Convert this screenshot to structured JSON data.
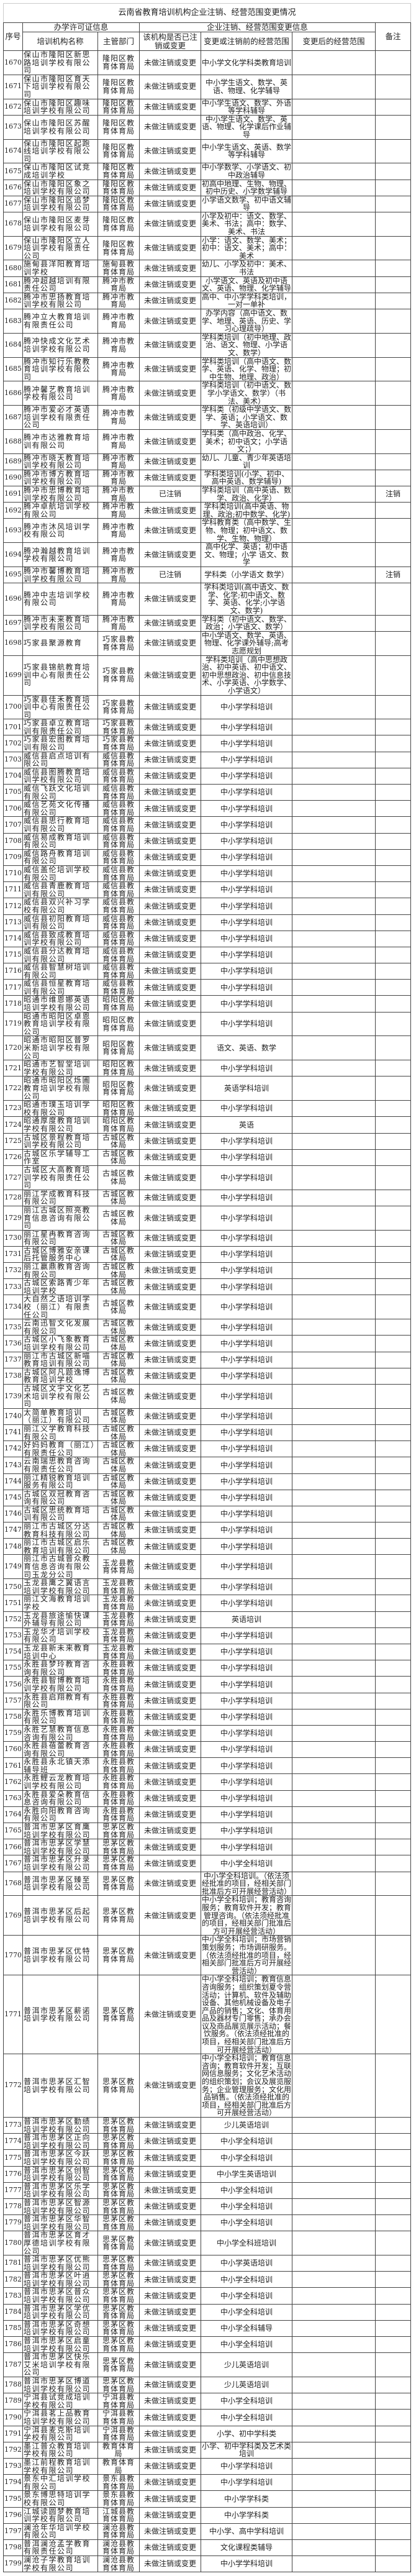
{
  "title": "云南省教育培训机构企业注销、经营范围变更情况",
  "headers": {
    "no": "序号",
    "group_license": "办学许可证信息",
    "group_change": "企业注销、经营范围变更信息",
    "name": "培训机构名称",
    "dept": "主管部门",
    "status": "该机构是否已注销或变更",
    "before": "变更或注销前的经营范围",
    "after": "变更后的经营范围",
    "note": "备注"
  },
  "rows": [
    [
      "1670",
      "保山市隆阳区新思路培训学校有限公司",
      "隆阳区教育体育局",
      "未做注销或变更",
      "中小学文化学科类教育培训",
      "",
      ""
    ],
    [
      "1671",
      "保山市隆阳区育天下培训学校有限公司",
      "隆阳区教育体育局",
      "未做注销或变更",
      "中小学生语文、数学、英语、物理、化学辅导",
      "",
      ""
    ],
    [
      "1672",
      "保山市隆阳区趣味培训学校有限公司",
      "隆阳区教育体育局",
      "未做注销或变更",
      "中小学生语文、数学、外语等学科辅导",
      "",
      ""
    ],
    [
      "1673",
      "保山市隆阳区苏醒培训学校有限公司",
      "隆阳区教育体育局",
      "未做注销或变更",
      "中小学生语文、数学、英语、物理、化学课后作业辅导",
      "",
      ""
    ],
    [
      "1674",
      "保山市隆阳区起跑线培训学校有限公司",
      "隆阳区教育体育局",
      "未做注销或变更",
      "中小学生语文、英语、数学等学科辅导",
      "",
      ""
    ],
    [
      "1675",
      "保山市隆阳区试竞成培训学校",
      "隆阳区教育体育局",
      "未做注销或变更",
      "中小学数学、小学语文、初中政治辅导",
      "",
      ""
    ],
    [
      "1676",
      "保山市隆阳区象之培训学校有限公司",
      "隆阳区教育体育局",
      "未做注销或变更",
      "初高中地理、生物、物理、初中历史、小学数学辅导",
      "",
      ""
    ],
    [
      "1677",
      "保山市隆阳区追梦培训学校有限公司",
      "隆阳区教育体育局",
      "未做注销或变更",
      "小学语文数学、初中语文辅导",
      "",
      ""
    ],
    [
      "1678",
      "保山市隆阳区麦芽培训学校有限公司",
      "隆阳区教育体育局",
      "未做注销或变更",
      "小学及初中：语文、数学、美术、书法；高中：数学、美术、书法",
      "",
      ""
    ],
    [
      "1679",
      "保山市隆阳区立人培训学校有限责任公司",
      "隆阳区教育体育局",
      "未做注销或变更",
      "小学：语文、数学、美术；初中：语文、美术；高中：美术",
      "",
      ""
    ],
    [
      "1680",
      "施甸县洋阳教育培训学校",
      "施甸县教育体育局",
      "未做注销或变更",
      "幼儿、小学及初中：美术、书法",
      "",
      ""
    ],
    [
      "1681",
      "腾冲超越培训有限责任公司",
      "腾冲市教育局",
      "未做注销或变更",
      "小学语文、英语及初中语文、英语、物理、化学辅导",
      "",
      ""
    ],
    [
      "1682",
      "腾冲市思扬教育培训学校有限公司",
      "腾冲市教育局",
      "未做注销或变更",
      "高中、中小学学科类培训，一对一单补",
      "",
      ""
    ],
    [
      "1683",
      "腾冲立大教育培训有限责任公司",
      "腾冲市教育局",
      "未做注销或变更",
      "办学内容（高中语文、数学、地理、英语、历史、学习心理疏导）",
      "",
      ""
    ],
    [
      "1684",
      "腾冲快成文化艺术培训学校有限公司",
      "腾冲市教育局",
      "未做注销或变更",
      "学科类培训（初中地理、政治、语文、物理、小学语文、数学）",
      "",
      ""
    ],
    [
      "1685",
      "腾冲市知行乐教教育培训学校有限公司",
      "腾冲市教育局",
      "未做注销或变更",
      "学科类培训（高中语文、数学、英语、化学、物理；初中生物、地理、政治）",
      "",
      ""
    ],
    [
      "1686",
      "腾冲馨艺教育培训学校有限公司",
      "腾冲市教育局",
      "未做注销或变更",
      "学科类培训（初中语文、数学小学语文、数学）（书法、美术）",
      "",
      ""
    ],
    [
      "1687",
      "腾冲市爱必才英语培训学校有限责任公司",
      "腾冲市教育局",
      "未做注销或变更",
      "学科类（初级中学语文、数学、英语；小学语文、数学、英语培训）",
      "",
      ""
    ],
    [
      "1688",
      "腾冲市达雅教育培训有限公司",
      "腾冲市教育局",
      "未做注销或变更",
      "学科类（高中政治、化学、美术；初中语文；小学语文；）",
      "",
      ""
    ],
    [
      "1689",
      "腾冲市晓天教育培训学校有限公司",
      "腾冲市教育局",
      "未做注销或变更",
      "幼儿、儿童、青少年英语培训",
      "",
      ""
    ],
    [
      "1690",
      "腾冲市博方教育培训学校有限公司",
      "腾冲市教育局",
      "未做注销或变更",
      "学科类培训(小学、初中、高中英语、数学辅导)",
      "",
      ""
    ],
    [
      "1691",
      "腾冲市思博教育培训学校有限公司",
      "腾冲市教育局",
      "已注销",
      "学科类培训（高中英语、数学、政治、化学）",
      "",
      "注销"
    ],
    [
      "1692",
      "腾冲卓航培训学校有限公司",
      "腾冲市教育局",
      "未做注销或变更",
      "学科类培训(高中英语、物理、政治;初中数学、化学)",
      "",
      ""
    ],
    [
      "1693",
      "腾冲市沐风培训学校有限公司",
      "腾冲市教育局",
      "未做注销或变更",
      "学科教育类（高中数学、生物、物理；初中语文、数学、生物、物理）",
      "",
      ""
    ],
    [
      "1694",
      "腾冲瀚越教育培训学校有限公司",
      "腾冲市教育局",
      "未做注销或变更",
      "高中化学、英语；初中语文、物理；小学 语文、数学",
      "",
      ""
    ],
    [
      "1695",
      "腾冲市馨博教育培训学校有限公司",
      "腾冲市教育局",
      "已注销",
      "学科类（小学语文 数学）",
      "",
      "注销"
    ],
    [
      "1696",
      "腾冲中志培训学校有限公司",
      "腾冲市教育局",
      "未做注销或变更",
      "学科类培训(高中语文、数学、化学;初中语文、数学、英语、化学;小学语文、数学)",
      "",
      ""
    ],
    [
      "1697",
      "腾冲市未来教育培训学校有限公司",
      "腾冲市教育局",
      "未做注销或变更",
      "学科类（初中语文、数学、政治；小学语文、数学）",
      "",
      ""
    ],
    [
      "1698",
      "巧家县聚源教育",
      "巧家县教育体育局",
      "未做注销或变更",
      "中小学语文、数学、英语、物理、化学课外辅导;高考志愿规划",
      "",
      ""
    ],
    [
      "1699",
      "巧家县锦航教育培训中心有限责任公司",
      "巧家县教育体育局",
      "未做注销或变更",
      "学科类培训（高中思想政治、初中英语、初中语文、初中思想政治、初中信息技术、小学英语、小学数学、小学语文）",
      "",
      ""
    ],
    [
      "1700",
      "巧家县佳禾教育培训中心有限责任公司",
      "巧家县教育体育局",
      "未做注销或变更",
      "中小学学科培训",
      "",
      ""
    ],
    [
      "1701",
      "巧家县卓立教育培训有限责任公司",
      "巧家县教育体育局",
      "未做注销或变更",
      "中小学学科培训",
      "",
      ""
    ],
    [
      "1702",
      "巧家县宏图教育培训有限公司",
      "巧家县教育体育局",
      "未做注销或变更",
      "中小学学科培训",
      "",
      ""
    ],
    [
      "1703",
      "威信县启点培训有限公司",
      "威信县教育体育局",
      "未做注销或变更",
      "中小学学科培训",
      "",
      ""
    ],
    [
      "1704",
      "威信县图腾教育培训学校有限公司",
      "威信县教育体育局",
      "未做注销或变更",
      "中小学学科培训",
      "",
      ""
    ],
    [
      "1705",
      "威信飞跃文化培训有限公司",
      "威信县教育体育局",
      "未做注销或变更",
      "中小学学科培训",
      "",
      ""
    ],
    [
      "1706",
      "威信艺苑文化传播有限公司",
      "威信县教育体育局",
      "未做注销或变更",
      "中小学学科培训",
      "",
      ""
    ],
    [
      "1707",
      "威信县思行教育培训有限公司",
      "威信县教育体育局",
      "未做注销或变更",
      "中小学学科培训",
      "",
      ""
    ],
    [
      "1708",
      "威信易成教育培训有限公司",
      "威信县教育体育局",
      "未做注销或变更",
      "中小学学科培训",
      "",
      ""
    ],
    [
      "1709",
      "威信路舟教育培训有限公司",
      "威信县教育体育局",
      "未做注销或变更",
      "中小学学科培训",
      "",
      ""
    ],
    [
      "1710",
      "威信盖伦培训学校有限公司",
      "威信县教育体育局",
      "未做注销或变更",
      "中小学学科培训",
      "",
      ""
    ],
    [
      "1711",
      "威信县青鹿教育培训有限公司",
      "威信县教育体育局",
      "未做注销或变更",
      "中小学学科培训",
      "",
      ""
    ],
    [
      "1712",
      "威信县双兴补习学校有限公司",
      "威信县教育体育局",
      "未做注销或变更",
      "中小学学科培训",
      "",
      ""
    ],
    [
      "1713",
      "威信县初阳教育培训有限公司",
      "威信县教育体育局",
      "未做注销或变更",
      "中小学学科培训",
      "",
      ""
    ],
    [
      "1714",
      "威信县致成教育培训学校有限公司",
      "威信县教育体育局",
      "未做注销或变更",
      "中小学学科培训",
      "",
      ""
    ],
    [
      "1715",
      "威信县分达教育培训有限公司",
      "威信县教育体育局",
      "未做注销或变更",
      "中小学学科培训",
      "",
      ""
    ],
    [
      "1716",
      "威信县智慧树培训有限公司",
      "威信县教育体育局",
      "未做注销或变更",
      "中小学学科培训",
      "",
      ""
    ],
    [
      "1717",
      "威信县恒星教育培训有限公司",
      "威信县教育体育局",
      "未做注销或变更",
      "中小学学科培训",
      "",
      ""
    ],
    [
      "1718",
      "昭通市维恩娜英语培训学校有限公司",
      "昭阳区教育体育局",
      "未做注销或变更",
      "中小学学科培训",
      "",
      ""
    ],
    [
      "1719",
      "昭通市昭阳区卓恩教育培训学校有限公司",
      "昭阳区教育体育局",
      "未做注销或变更",
      "中小学学科培训",
      "",
      ""
    ],
    [
      "1720",
      "昭通市昭阳区普罗米斯培训学校有限公司",
      "昭阳区教育体育局",
      "未做注销或变更",
      "语文、英语、数学",
      "",
      ""
    ],
    [
      "1721",
      "昭通市艺智堂培训学校有限公司",
      "昭阳区教育体育局",
      "未做注销或变更",
      "中小学学科培训",
      "",
      ""
    ],
    [
      "1722",
      "昭通市昭阳区烁圃教育培训学校有限公司",
      "昭阳区教育体育局",
      "未做注销或变更",
      "英语学科培训",
      "",
      ""
    ],
    [
      "1723",
      "昭通市璞玉培训学校有限公司",
      "昭阳区教育体育局",
      "未做注销或变更",
      "中小学学科培训",
      "",
      ""
    ],
    [
      "1724",
      "昭通厚度教育培训学校有限公司",
      "昭阳区教育体育局",
      "未做注销或变更",
      "英语",
      "",
      ""
    ],
    [
      "1725",
      "古城区景程教育培训学校有限公司",
      "古城区教体局",
      "未做注销或变更",
      "中小学学科培训",
      "",
      ""
    ],
    [
      "1726",
      "古城区乐学辅导工作室",
      "古城区教体局",
      "未做注销或变更",
      "中小学学科培训",
      "",
      ""
    ],
    [
      "1727",
      "古城区大高教育培训学校有限责任公司",
      "古城区教体局",
      "未做注销或变更",
      "中小学学科培训",
      "",
      ""
    ],
    [
      "1728",
      "丽江学成教育科技有限公司",
      "古城区教体局",
      "未做注销或变更",
      "中小学学科培训",
      "",
      ""
    ],
    [
      "1729",
      "丽江古城区照亮教育信息咨询有限公司",
      "古城区教体局",
      "未做注销或变更",
      "中小学学科培训",
      "",
      ""
    ],
    [
      "1730",
      "丽江星冉教育咨询有限公司",
      "古城区教体局",
      "未做注销或变更",
      "中小学学科培训",
      "",
      ""
    ],
    [
      "1731",
      "古城区博雅安亲课后托管服务中心",
      "古城区教体局",
      "未做注销或变更",
      "中小学学科培训",
      "",
      ""
    ],
    [
      "1732",
      "丽江赢鼎教育咨询有限公司",
      "古城区教体局",
      "未做注销或变更",
      "中小学学科培训",
      "",
      ""
    ],
    [
      "1733",
      "古城区索路青少年培训学校",
      "古城区教体局",
      "未做注销或变更",
      "中小学学科培训",
      "",
      ""
    ],
    [
      "1734",
      "大自然之语培训学校（丽江）有限责任公司",
      "古城区教体局",
      "未做注销或变更",
      "中小学学科培训",
      "",
      ""
    ],
    [
      "1735",
      "云南迅智文化发展有限公司",
      "古城区教体局",
      "未做注销或变更",
      "中小学学科培训",
      "",
      ""
    ],
    [
      "1736",
      "古城区小飞象教育培训学校有限公司",
      "古城区教体局",
      "未做注销或变更",
      "中小学学科培训",
      "",
      ""
    ],
    [
      "1737",
      "丽江市古城区新喵教育培训有限公司",
      "古城区教体局",
      "未做注销或变更",
      "中小学学科培训",
      "",
      ""
    ],
    [
      "1738",
      "古城区阿凡题逸博教育培训学校",
      "古城区教体局",
      "未做注销或变更",
      "中小学学科培训",
      "",
      ""
    ],
    [
      "1739",
      "古城区文宇文化艺术培训学校有限公司",
      "古城区教体局",
      "未做注销或变更",
      "中小学学科培训",
      "",
      ""
    ],
    [
      "1740",
      "太简单教育培训（丽江）有限公司",
      "古城区教体局",
      "未做注销或变更",
      "中小学学科培训",
      "",
      ""
    ],
    [
      "1741",
      "丽江义学教育科技有限公司",
      "古城区教体局",
      "未做注销或变更",
      "中小学学科培训",
      "",
      ""
    ],
    [
      "1742",
      "好妈妈教育（丽江）有限责任公司",
      "古城区教体局",
      "未做注销或变更",
      "中小学学科培训",
      "",
      ""
    ],
    [
      "1743",
      "云南瑞思教育咨询有限责任公司",
      "古城区教体局",
      "未做注销或变更",
      "中小学学科培训",
      "",
      ""
    ],
    [
      "1744",
      "丽江精锐教育培训服务有限公司",
      "古城区教体局",
      "未做注销或变更",
      "中小学学科培训",
      "",
      ""
    ],
    [
      "1745",
      "古城区双冠教育咨询有限公司",
      "古城区教体局",
      "未做注销或变更",
      "中小学学科培训",
      "",
      ""
    ],
    [
      "1746",
      "古城区思统教育培训有限公司",
      "古城区教体局",
      "未做注销或变更",
      "中小学学科培训",
      "",
      ""
    ],
    [
      "1747",
      "丽江市古城区分达教育科技有限公司",
      "古城区教体局",
      "未做注销或变更",
      "中小学学科培训",
      "",
      ""
    ],
    [
      "1748",
      "丽江市古城区启乐教育培训有限公司",
      "古城区教体局",
      "未做注销或变更",
      "中小学学科培训",
      "",
      ""
    ],
    [
      "1749",
      "丽江市古城普众教育信息咨询有限公司玉龙分公司",
      "玉龙县教育体育局",
      "未做注销或变更",
      "中小学学科培训",
      "",
      ""
    ],
    [
      "1750",
      "玉龙县鹰之翼语言培训学校有限公司",
      "玉龙县教育体育局",
      "未做注销或变更",
      "中小学学科培训",
      "",
      ""
    ],
    [
      "1751",
      "丽江文海教育培训学校",
      "玉龙县教育体育局",
      "未做注销或变更",
      "中小学学科培训",
      "",
      ""
    ],
    [
      "1752",
      "玉龙县旅途愉快课外辅导有限公司",
      "玉龙县教育体育局",
      "未做注销或变更",
      "英语培训",
      "",
      ""
    ],
    [
      "1753",
      "玉龙华才培训学校有限公司",
      "玉龙县教育体育局",
      "未做注销或变更",
      "中小学学科培训",
      "",
      ""
    ],
    [
      "1754",
      "玉龙县新未来教育培训中心",
      "玉龙县教育体育局",
      "未做注销或变更",
      "中小学学科培训",
      "",
      ""
    ],
    [
      "1755",
      "永胜县梦玲教育咨询有限公司",
      "永胜县教育体育局",
      "未做注销或变更",
      "中小学学科培训",
      "",
      ""
    ],
    [
      "1756",
      "永胜县智博教育培训学校有限公司",
      "永胜县教育体育局",
      "未做注销或变更",
      "中小学学科培训",
      "",
      ""
    ],
    [
      "1757",
      "永胜县启翔教育有限公司",
      "永胜县教育体育局",
      "未做注销或变更",
      "中小学学科培训",
      "",
      ""
    ],
    [
      "1758",
      "永胜乐博教育培训有限公司",
      "永胜县教育体育局",
      "未做注销或变更",
      "中小学学科培训",
      "",
      ""
    ],
    [
      "1759",
      "永胜艺慧教育信息咨询有限公司",
      "永胜县教育体育局",
      "未做注销或变更",
      "中小学学科培训",
      "",
      ""
    ],
    [
      "1760",
      "永胜县蓓蕾教育咨询有限公司",
      "永胜县教育体育局",
      "未做注销或变更",
      "中小学学科培训",
      "",
      ""
    ],
    [
      "1761",
      "永胜县永北镇天添辅导班",
      "永胜县教育体育局",
      "未做注销或变更",
      "中小学学科培训",
      "",
      ""
    ],
    [
      "1762",
      "永胜鲤云龙教育培训学校有限公司",
      "永胜县教育体育局",
      "未做注销或变更",
      "中小学学科培训",
      "",
      ""
    ],
    [
      "1763",
      "永胜县爱朵教育信息咨询有限公司",
      "永胜县教育体育局",
      "未做注销或变更",
      "中小学学科培训",
      "",
      ""
    ],
    [
      "1764",
      "永胜向阳教育咨询有限公司",
      "永胜县教育体育局",
      "未做注销或变更",
      "中小学学科培训",
      "",
      ""
    ],
    [
      "1765",
      "普洱市思茅区育鹰培训学校有限公司",
      "思茅区教育体育局",
      "未做注销或变更",
      "中小学学科培训",
      "",
      ""
    ],
    [
      "1766",
      "普洱市思茅区学慧培训学校有限公司",
      "思茅区教育体育局",
      "未做注销或变更",
      "中小学学科培训",
      "",
      ""
    ],
    [
      "1767",
      "普洱市思茅区升录培训学校有限公司",
      "思茅区教育体育局",
      "未做注销或变更",
      "中小学全科培训",
      "",
      ""
    ],
    [
      "1768",
      "普洱市思茅区臻至培训学校有限公司",
      "思茅区教育体育局",
      "未做注销或变更",
      "中小学全科培训。（依法须经批准的项目，经相关部门批准后方可开展经营活动）",
      "",
      ""
    ],
    [
      "1769",
      "普洱市思茅区后起培训学校有限公司",
      "思茅区教育体育局",
      "未做注销或变更",
      "中小学全科培训；教育咨询服务；教育软件开发；教育管理咨询。（依法须经批准的项目，经相关部门批准后方可开展经营活动）",
      "",
      ""
    ],
    [
      "1770",
      "普洱市思茅区优特培训学校有限公司",
      "思茅区教育体育局",
      "未做注销或变更",
      "中小学全科培训；市场营销策划服务；市场调研服务。（依法须经批准的项目，经相关部门批准后方可开展经营活动）",
      "",
      ""
    ],
    [
      "1771",
      "普洱市思茅区薪诺培训学校有限公司",
      "思茅区教育体育局",
      "未做注销或变更",
      "中小学全科培训；教育信息咨询服务；组织策划夏令营活动；计算机、软件及辅助设备、其他机械设备及电子产品的销售；文化、体育用品及器材专门零售；承办会议及商品展览展示活动；餐饮服务。（依法须经批准的项目，经相关部门批准后方可开展经营活动）",
      "",
      ""
    ],
    [
      "1772",
      "普洱市思茅区汇智培训学校有限公司",
      "思茅区教育体育局",
      "未做注销或变更",
      "中小学全科培训；教育信息咨询；教育软件开发；互联网信息服务；文化艺术活动的组织策划；会议及展览服务；企业管理服务；文化用品销售。（依法须经批准的项目，经相关部门批准后方可开展经营活动）",
      "",
      ""
    ],
    [
      "1773",
      "普洱市思茅区勤绩培训学校有限公司",
      "思茅区教育体育局",
      "未做注销或变更",
      "少儿英语培训",
      "",
      ""
    ],
    [
      "1774",
      "普洱市思茅区正向培训学校有限公司",
      "思茅区教育体育局",
      "未做注销或变更",
      "中小学全科培训",
      "",
      ""
    ],
    [
      "1775",
      "普洱市思茅区今跃培训学校有限公司",
      "思茅区教育体育局",
      "未做注销或变更",
      "中小学全科培训",
      "",
      ""
    ],
    [
      "1776",
      "普洱市思茅区创智培训学校有限公司",
      "思茅区教育体育局",
      "未做注销或变更",
      "中小学生英语培训",
      "",
      ""
    ],
    [
      "1777",
      "普洱市思茅区乐学培训学校有限公司",
      "思茅区教育体育局",
      "未做注销或变更",
      "中小学全科培训",
      "",
      ""
    ],
    [
      "1778",
      "普洱市思茅区智源培训学校有限公司",
      "思茅区教育体育局",
      "未做注销或变更",
      "中小学全科培训",
      "",
      ""
    ],
    [
      "1779",
      "普洱市思茅区华智培训学校有限公司",
      "思茅区教育体育局",
      "未做注销或变更",
      "中小学全科培训",
      "",
      ""
    ],
    [
      "1780",
      "普洱市思茅区育才厚德培训学校有限公司",
      "思茅区教育体育局",
      "未做注销或变更",
      "中小学全科班培训",
      "",
      ""
    ],
    [
      "1781",
      "普洱市思茅区优熊培训学校有限公司",
      "思茅区教育体育局",
      "未做注销或变更",
      "中小学英语培训",
      "",
      ""
    ],
    [
      "1782",
      "普洱市思茅区叶逍培训学校有限公司",
      "思茅区教育体育局",
      "未做注销或变更",
      "中小学全科培训",
      "",
      ""
    ],
    [
      "1783",
      "普洱市思茅区普众培训学校有限公司",
      "思茅区教育体育局",
      "未做注销或变更",
      "中小学全科培训",
      "",
      ""
    ],
    [
      "1784",
      "普洱市思茅区学优培训学校有限公司",
      "思茅区教育体育局",
      "未做注销或变更",
      "中小学全科培训",
      "",
      ""
    ],
    [
      "1785",
      "普洱市思茅区奇想培训学校有限公司",
      "思茅区教育体育局",
      "未做注销或变更",
      "中小学全科辅导",
      "",
      ""
    ],
    [
      "1786",
      "普洱市思茅区启童培训学校有限公司",
      "思茅区教育体育局",
      "未做注销或变更",
      "中小学全科培训",
      "",
      ""
    ],
    [
      "1787",
      "普洱市思茅区快乐艾米培训学校有限公司",
      "思茅区教育体育局",
      "未做注销或变更",
      "少儿英语培训",
      "",
      ""
    ],
    [
      "1788",
      "普洱市思茅区博道培训学校有限公司",
      "思茅区教育体育局",
      "未做注销或变更",
      "少儿英语培训",
      "",
      ""
    ],
    [
      "1789",
      "宁洱县试竞成培训学校有限公司",
      "宁洱县教育体育局",
      "未做注销或变更",
      "中小学全科培训",
      "",
      ""
    ],
    [
      "1790",
      "宁洱县茗上品教育培训学校有限公司",
      "宁洱县教育体育局",
      "未做注销或变更",
      "中小学全科培训",
      "",
      ""
    ],
    [
      "1791",
      "宁洱县麦克斯培训学校有限公司",
      "宁洱县教育体育局",
      "未做注销或变更",
      "小学、初中学科类",
      "",
      ""
    ],
    [
      "1792",
      "墨江普众教育培训学校有限公司",
      "教育体育局",
      "未做注销或变更",
      "小学、初中学科类及艺术类培训",
      "",
      ""
    ],
    [
      "1793",
      "墨江前程教育培训学校有限公司",
      "教育体育局",
      "未做注销或变更",
      "中小学学科培训",
      "",
      ""
    ],
    [
      "1794",
      "景东中汇培训学校有限公司",
      "景东县教育体育局",
      "未做注销或变更",
      "中小学学科培训",
      "",
      ""
    ],
    [
      "1795",
      "景东博思特培训学校有限公司",
      "景东县教育体育局",
      "未做注销或变更",
      "中小学学科类",
      "",
      ""
    ],
    [
      "1796",
      "江城读圆梦教育培训学校有限公司",
      "江城县教育体育局",
      "未做注销或变更",
      "中小学学科类",
      "",
      ""
    ],
    [
      "1797",
      "澜沧年华培训学校有限公司",
      "澜沧县教育体育局",
      "未做注销或变更",
      "中小学、高中学科培训",
      "",
      ""
    ],
    [
      "1798",
      "普洱澜沧孟学教育有限责任公司",
      "澜沧县教育体育局",
      "未做注销或变更",
      "文化课程类辅导",
      "",
      ""
    ],
    [
      "1799",
      "澜沧子学教育培训学校有限公司",
      "澜沧县教育体育局",
      "未做注销或变更",
      "中小学学科培训",
      "",
      ""
    ]
  ]
}
